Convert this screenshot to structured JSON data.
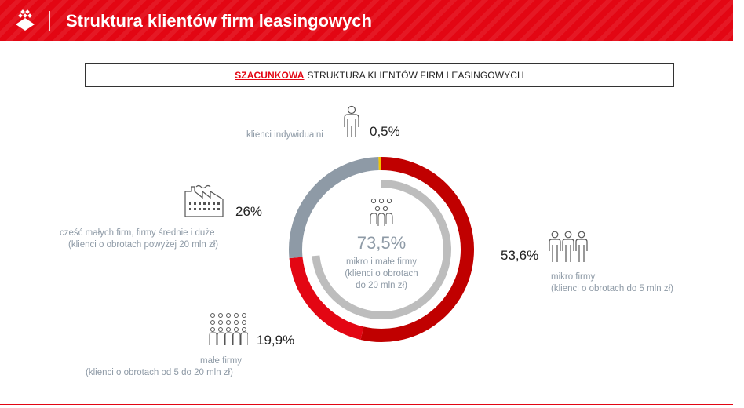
{
  "header": {
    "title": "Struktura klientów firm leasingowych"
  },
  "subtitle": {
    "highlight": "SZACUNKOWA",
    "rest": "STRUKTURA KLIENTÓW FIRM LEASINGOWYCH"
  },
  "colors": {
    "brand": "#e30613",
    "dark_red": "#c00000",
    "slate": "#8e9aa6",
    "inner_gray": "#bdbdbd",
    "yellow": "#f2c500"
  },
  "icons": [
    "brand-logo-icon",
    "person-icon",
    "factory-icon",
    "group-three-icon",
    "crowd-icon",
    "group-center-icon"
  ],
  "chart_data": {
    "type": "pie",
    "title": "",
    "outer_ring": [
      {
        "name": "mikro firmy",
        "detail": "(klienci o obrotach do 5 mln zł)",
        "value": 53.6,
        "label": "53,6%",
        "color": "#c00000"
      },
      {
        "name": "małe firmy",
        "detail": "(klienci o obrotach od 5 do 20 mln zł)",
        "value": 19.9,
        "label": "19,9%",
        "color": "#e30613"
      },
      {
        "name": "cześć małych firm, firmy średnie i duże",
        "detail": "(klienci o obrotach powyżej 20 mln zł)",
        "value": 26,
        "label": "26%",
        "color": "#8e9aa6"
      },
      {
        "name": "klienci indywidualni",
        "detail": "",
        "value": 0.5,
        "label": "0,5%",
        "color": "#f2c500"
      }
    ],
    "inner_ring": {
      "value": 73.5,
      "label": "73,5%",
      "name": "mikro i małe firmy",
      "detail_line1": "(klienci o obrotach",
      "detail_line2": "do 20 mln zł)",
      "color": "#bdbdbd"
    }
  }
}
